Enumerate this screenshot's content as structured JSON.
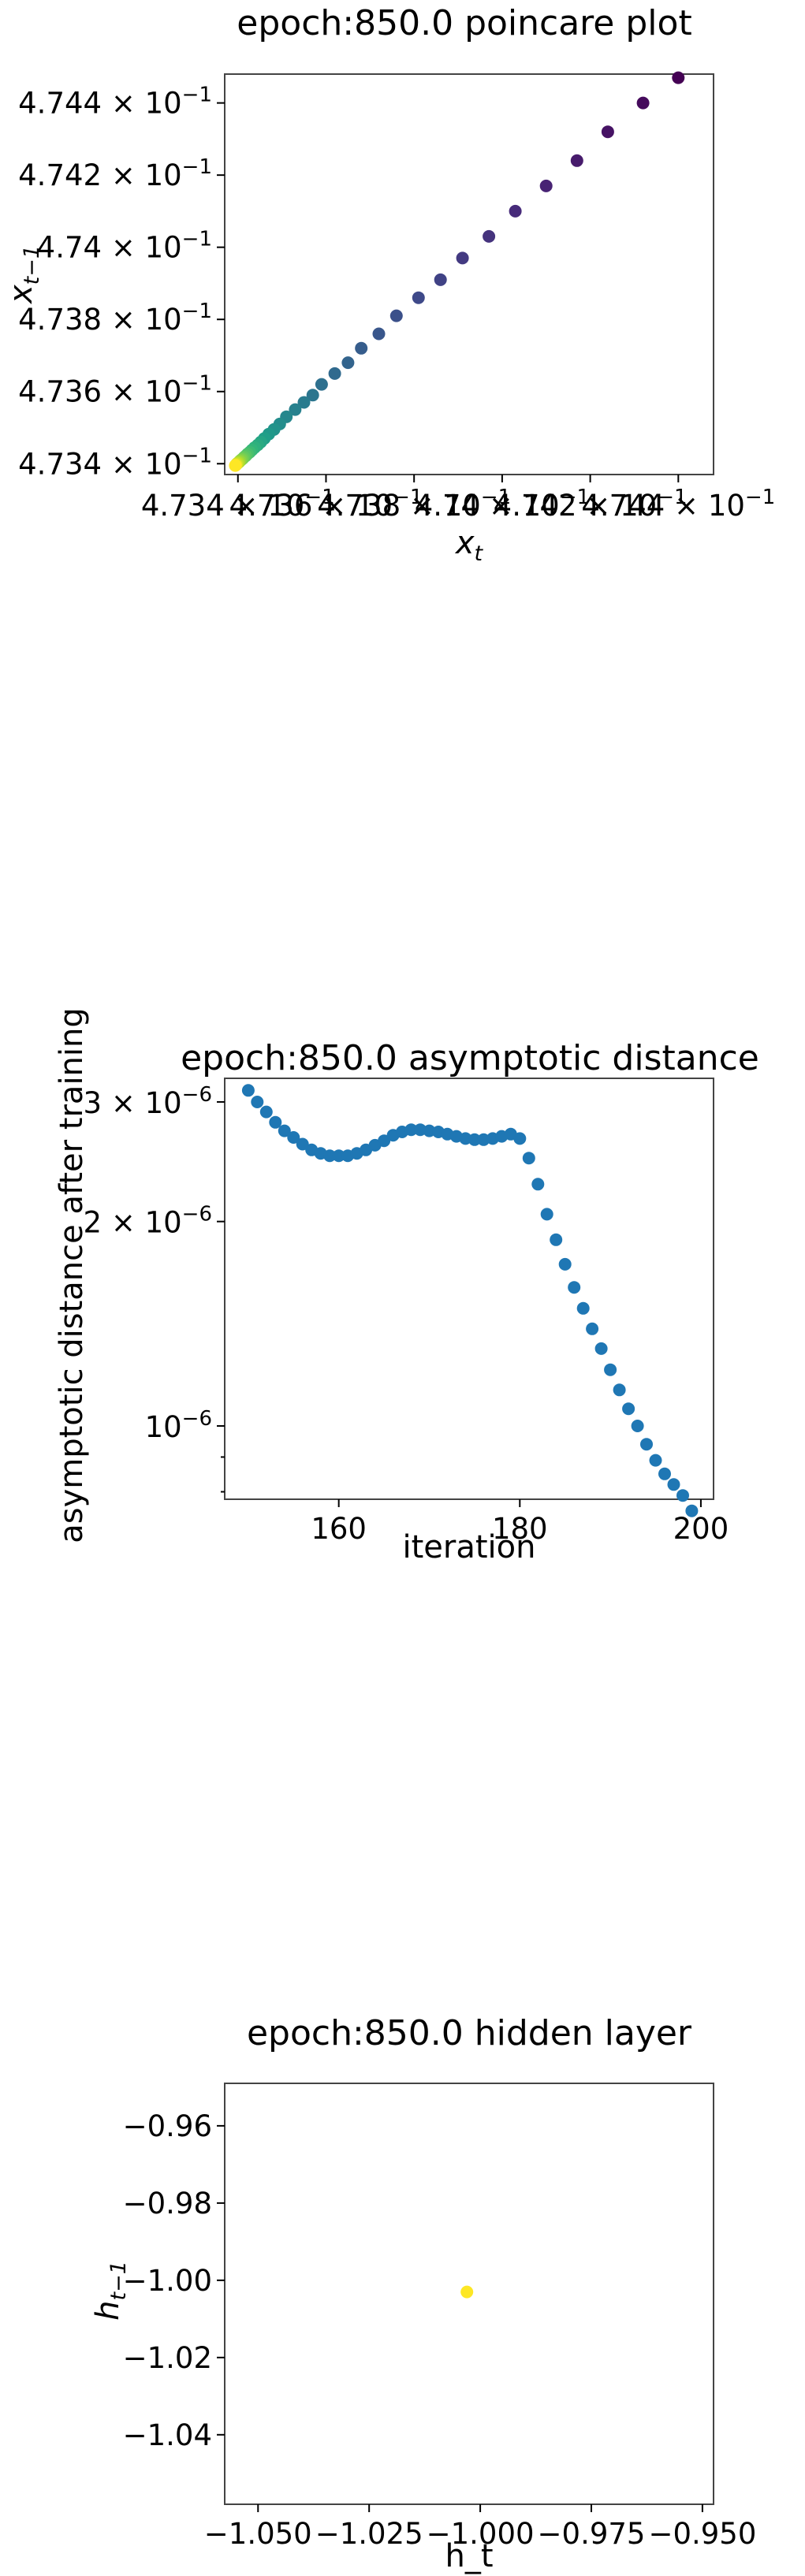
{
  "chart_data": [
    {
      "type": "scatter",
      "title": "epoch:850.0 poincare plot",
      "xlabel_base": "x",
      "xlabel_sub": "t",
      "ylabel_base": "x",
      "ylabel_sub": "t−1",
      "xlim": [
        0.47337,
        0.47448
      ],
      "ylim": [
        0.47337,
        0.47448
      ],
      "x_ticks": [
        {
          "value": 0.4734,
          "label": "4.734 × 10",
          "exp": "−1"
        },
        {
          "value": 0.4736,
          "label": "4.736 × 10",
          "exp": "−1"
        },
        {
          "value": 0.4738,
          "label": "4.738 × 10",
          "exp": "−1"
        },
        {
          "value": 0.474,
          "label": "4.74 × 10",
          "exp": "−1"
        },
        {
          "value": 0.4742,
          "label": "4.742 × 10",
          "exp": "−1"
        },
        {
          "value": 0.4744,
          "label": "4.744 × 10",
          "exp": "−1"
        }
      ],
      "y_ticks": [
        {
          "value": 0.4734,
          "label": "4.734 × 10",
          "exp": "−1"
        },
        {
          "value": 0.4736,
          "label": "4.736 × 10",
          "exp": "−1"
        },
        {
          "value": 0.4738,
          "label": "4.738 × 10",
          "exp": "−1"
        },
        {
          "value": 0.474,
          "label": "4.74 × 10",
          "exp": "−1"
        },
        {
          "value": 0.4742,
          "label": "4.742 × 10",
          "exp": "−1"
        },
        {
          "value": 0.4744,
          "label": "4.744 × 10",
          "exp": "−1"
        }
      ],
      "colormap": "viridis (purple = early, yellow = late)",
      "points": [
        [
          0.4744,
          0.47447
        ],
        [
          0.47432,
          0.4744
        ],
        [
          0.47424,
          0.47432
        ],
        [
          0.47417,
          0.47424
        ],
        [
          0.4741,
          0.47417
        ],
        [
          0.47403,
          0.4741
        ],
        [
          0.47397,
          0.47403
        ],
        [
          0.47391,
          0.47397
        ],
        [
          0.47386,
          0.47391
        ],
        [
          0.47381,
          0.47386
        ],
        [
          0.47376,
          0.47381
        ],
        [
          0.47372,
          0.47376
        ],
        [
          0.47368,
          0.47372
        ],
        [
          0.47365,
          0.47368
        ],
        [
          0.47362,
          0.47365
        ],
        [
          0.47359,
          0.47362
        ],
        [
          0.47357,
          0.47359
        ],
        [
          0.47355,
          0.47357
        ],
        [
          0.47353,
          0.47355
        ],
        [
          0.47351,
          0.47353
        ],
        [
          0.473495,
          0.47351
        ],
        [
          0.473482,
          0.473495
        ],
        [
          0.47347,
          0.473482
        ],
        [
          0.47346,
          0.47347
        ],
        [
          0.473452,
          0.47346
        ],
        [
          0.473445,
          0.473452
        ],
        [
          0.473438,
          0.473445
        ],
        [
          0.473432,
          0.473438
        ],
        [
          0.473427,
          0.473432
        ],
        [
          0.473422,
          0.473427
        ],
        [
          0.473418,
          0.473422
        ],
        [
          0.473414,
          0.473418
        ],
        [
          0.473411,
          0.473414
        ],
        [
          0.473408,
          0.473411
        ],
        [
          0.473405,
          0.473408
        ],
        [
          0.473403,
          0.473405
        ],
        [
          0.473401,
          0.473403
        ],
        [
          0.473399,
          0.473401
        ],
        [
          0.473397,
          0.473399
        ],
        [
          0.473396,
          0.473397
        ],
        [
          0.473395,
          0.473396
        ],
        [
          0.473394,
          0.473395
        ]
      ]
    },
    {
      "type": "scatter",
      "title": "epoch:850.0 asymptotic distance",
      "xlabel": "iteration",
      "ylabel": "asymptotic distance after training",
      "xscale": "linear",
      "yscale": "log",
      "xlim": [
        147.4,
        201.4
      ],
      "ylim": [
        7.8e-07,
        3.25e-06
      ],
      "x_ticks": [
        {
          "value": 160,
          "label": "160"
        },
        {
          "value": 180,
          "label": "180"
        },
        {
          "value": 200,
          "label": "200"
        }
      ],
      "y_ticks": [
        {
          "value": 1e-06,
          "label": "10",
          "exp": "−6"
        },
        {
          "value": 2e-06,
          "label": "2 × 10",
          "exp": "−6"
        },
        {
          "value": 3e-06,
          "label": "3 × 10",
          "exp": "−6"
        }
      ],
      "color": "#1f77b4",
      "x": [
        150,
        151,
        152,
        153,
        154,
        155,
        156,
        157,
        158,
        159,
        160,
        161,
        162,
        163,
        164,
        165,
        166,
        167,
        168,
        169,
        170,
        171,
        172,
        173,
        174,
        175,
        176,
        177,
        178,
        179,
        180,
        181,
        182,
        183,
        184,
        185,
        186,
        187,
        188,
        189,
        190,
        191,
        192,
        193,
        194,
        195,
        196,
        197,
        198,
        199
      ],
      "y": [
        3.12e-06,
        3e-06,
        2.9e-06,
        2.8e-06,
        2.72e-06,
        2.66e-06,
        2.6e-06,
        2.55e-06,
        2.52e-06,
        2.5e-06,
        2.5e-06,
        2.5e-06,
        2.52e-06,
        2.55e-06,
        2.59e-06,
        2.63e-06,
        2.68e-06,
        2.71e-06,
        2.73e-06,
        2.73e-06,
        2.72e-06,
        2.71e-06,
        2.69e-06,
        2.67e-06,
        2.65e-06,
        2.64e-06,
        2.64e-06,
        2.65e-06,
        2.67e-06,
        2.69e-06,
        2.65e-06,
        2.48e-06,
        2.27e-06,
        2.05e-06,
        1.88e-06,
        1.73e-06,
        1.6e-06,
        1.49e-06,
        1.39e-06,
        1.3e-06,
        1.21e-06,
        1.13e-06,
        1.06e-06,
        1e-06,
        9.4e-07,
        8.9e-07,
        8.5e-07,
        8.2e-07,
        7.9e-07,
        7.5e-07
      ]
    },
    {
      "type": "scatter",
      "title": "epoch:850.0 hidden layer",
      "xlabel": "h_t",
      "ylabel_base": "h",
      "ylabel_sub": "t−1",
      "xlim": [
        -1.0575,
        -0.9475
      ],
      "ylim": [
        -1.058,
        -0.949
      ],
      "x_ticks": [
        {
          "value": -1.05,
          "label": "−1.050"
        },
        {
          "value": -1.025,
          "label": "−1.025"
        },
        {
          "value": -1.0,
          "label": "−1.000"
        },
        {
          "value": -0.975,
          "label": "−0.975"
        },
        {
          "value": -0.95,
          "label": "−0.950"
        }
      ],
      "y_ticks": [
        {
          "value": -0.96,
          "label": "−0.96"
        },
        {
          "value": -0.98,
          "label": "−0.98"
        },
        {
          "value": -1.0,
          "label": "−1.00"
        },
        {
          "value": -1.02,
          "label": "−1.02"
        },
        {
          "value": -1.04,
          "label": "−1.04"
        }
      ],
      "color": "#fde725",
      "points": [
        [
          -1.003,
          -1.003
        ]
      ]
    }
  ]
}
